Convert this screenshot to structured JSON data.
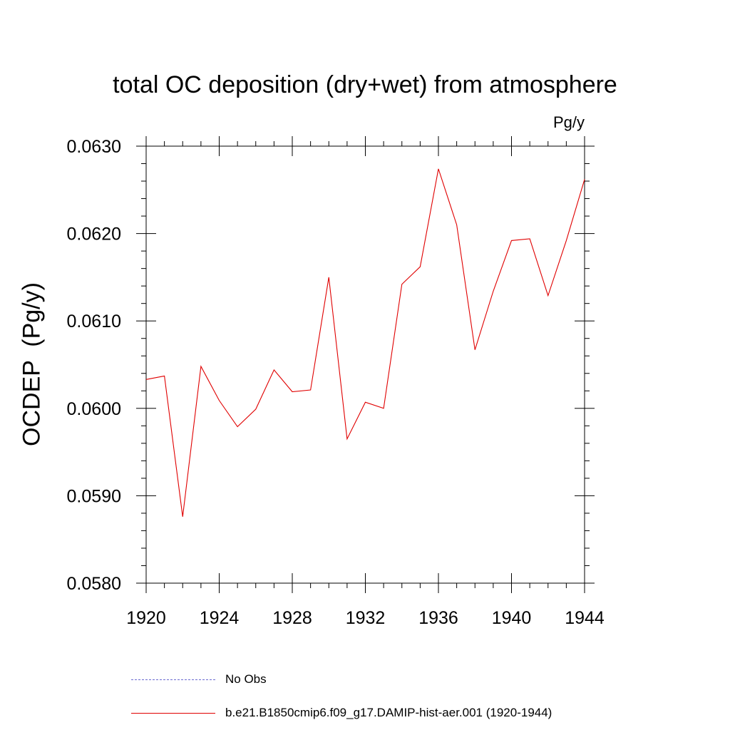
{
  "chart_data": {
    "type": "line",
    "title": "total OC deposition (dry+wet) from atmosphere",
    "units": "Pg/y",
    "ylabel": "OCDEP  (Pg/y)",
    "xlabel": "",
    "xlim": [
      1920,
      1944
    ],
    "ylim": [
      0.058,
      0.063
    ],
    "xticks": [
      "1920",
      "1924",
      "1928",
      "1932",
      "1936",
      "1940",
      "1944"
    ],
    "yticks": [
      "0.0580",
      "0.0590",
      "0.0600",
      "0.0610",
      "0.0620",
      "0.0630"
    ],
    "grid": false,
    "legend_position": "bottom",
    "series": [
      {
        "name": "b.e21.B1850cmip6.f09_g17.DAMIP-hist-aer.001 (1920-1944)",
        "color": "#e00000",
        "style": "solid",
        "x": [
          1920,
          1921,
          1922,
          1923,
          1924,
          1925,
          1926,
          1927,
          1928,
          1929,
          1930,
          1931,
          1932,
          1933,
          1934,
          1935,
          1936,
          1937,
          1938,
          1939,
          1940,
          1941,
          1942,
          1943,
          1944
        ],
        "values": [
          0.06033,
          0.06037,
          0.05876,
          0.06048,
          0.06009,
          0.05979,
          0.05999,
          0.06044,
          0.06019,
          0.06021,
          0.0615,
          0.05965,
          0.06007,
          0.06,
          0.06142,
          0.06162,
          0.06274,
          0.0621,
          0.06067,
          0.06134,
          0.06192,
          0.06194,
          0.06129,
          0.06192,
          0.06262
        ]
      }
    ]
  },
  "legend": [
    {
      "label": "No Obs",
      "color": "#6a6ad0",
      "style": "dash"
    },
    {
      "label": "b.e21.B1850cmip6.f09_g17.DAMIP-hist-aer.001 (1920-1944)",
      "color": "#e00000",
      "style": "solid"
    }
  ]
}
